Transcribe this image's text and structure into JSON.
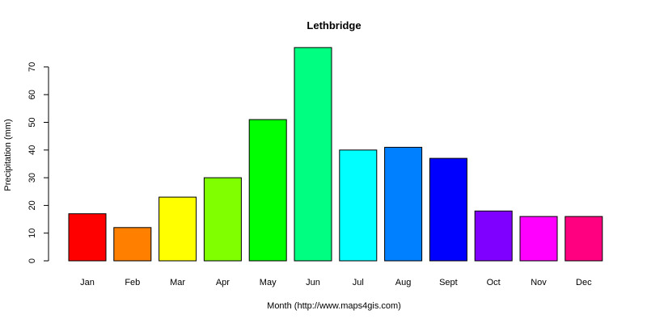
{
  "chart_data": {
    "type": "bar",
    "title": "Lethbridge",
    "xlabel": "Month (http://www.maps4gis.com)",
    "ylabel": "Precipitation (mm)",
    "categories": [
      "Jan",
      "Feb",
      "Mar",
      "Apr",
      "May",
      "Jun",
      "Jul",
      "Aug",
      "Sept",
      "Oct",
      "Nov",
      "Dec"
    ],
    "values": [
      17,
      12,
      23,
      30,
      51,
      77,
      40,
      41,
      37,
      18,
      16,
      16
    ],
    "colors": [
      "#ff0000",
      "#ff8000",
      "#ffff00",
      "#80ff00",
      "#00ff00",
      "#00ff80",
      "#00ffff",
      "#0080ff",
      "#0000ff",
      "#8000ff",
      "#ff00ff",
      "#ff0080"
    ],
    "yticks": [
      0,
      10,
      20,
      30,
      40,
      50,
      60,
      70
    ],
    "ylim": [
      0,
      77
    ],
    "grid": false,
    "legend": "none"
  }
}
